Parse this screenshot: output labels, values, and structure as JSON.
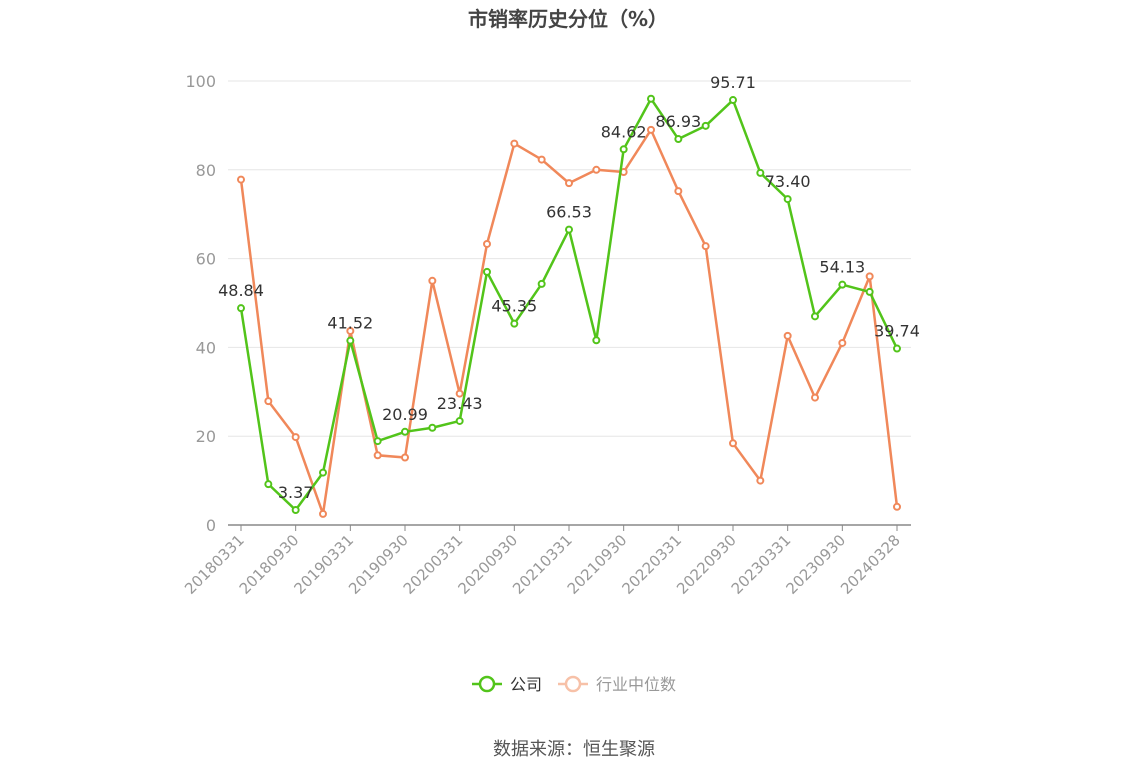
{
  "chart_data": {
    "type": "line",
    "title": "市销率历史分位（%）",
    "source": "数据来源：恒生聚源",
    "ylim": [
      0,
      100
    ],
    "y_ticks": [
      0,
      20,
      40,
      60,
      80,
      100
    ],
    "x_tick_labels": [
      "20180331",
      "20180930",
      "20190331",
      "20190930",
      "20200331",
      "20200930",
      "20210331",
      "20210930",
      "20220331",
      "20220930",
      "20230331",
      "20230930",
      "20240328"
    ],
    "x": [
      "20180331",
      "20180630",
      "20180930",
      "20181231",
      "20190331",
      "20190630",
      "20190930",
      "20191231",
      "20200331",
      "20200630",
      "20200930",
      "20201231",
      "20210331",
      "20210630",
      "20210930",
      "20211231",
      "20220331",
      "20220630",
      "20220930",
      "20221231",
      "20230331",
      "20230630",
      "20230930",
      "20231231",
      "20240328"
    ],
    "grid": true,
    "legend_position": "bottom",
    "series": [
      {
        "name": "公司",
        "color": "#52c41a",
        "values": [
          48.84,
          9.2,
          3.37,
          11.8,
          41.52,
          18.9,
          20.99,
          21.9,
          23.43,
          57.0,
          45.35,
          54.3,
          66.53,
          41.6,
          84.62,
          96.0,
          86.93,
          89.9,
          95.71,
          79.3,
          73.4,
          47.0,
          54.13,
          52.5,
          39.74
        ],
        "labels": {
          "0": "48.84",
          "2": "3.37",
          "4": "41.52",
          "6": "20.99",
          "8": "23.43",
          "10": "45.35",
          "12": "66.53",
          "14": "84.62",
          "16": "86.93",
          "18": "95.71",
          "20": "73.40",
          "22": "54.13",
          "24": "39.74"
        }
      },
      {
        "name": "行业中位数",
        "color": "#f0885a",
        "values": [
          77.8,
          27.9,
          19.8,
          2.5,
          43.7,
          15.7,
          15.2,
          55.0,
          29.6,
          63.3,
          85.9,
          82.3,
          77.0,
          80.0,
          79.5,
          89.0,
          75.2,
          62.8,
          18.4,
          10.0,
          42.6,
          28.7,
          41.0,
          56.0,
          4.1
        ]
      }
    ]
  }
}
